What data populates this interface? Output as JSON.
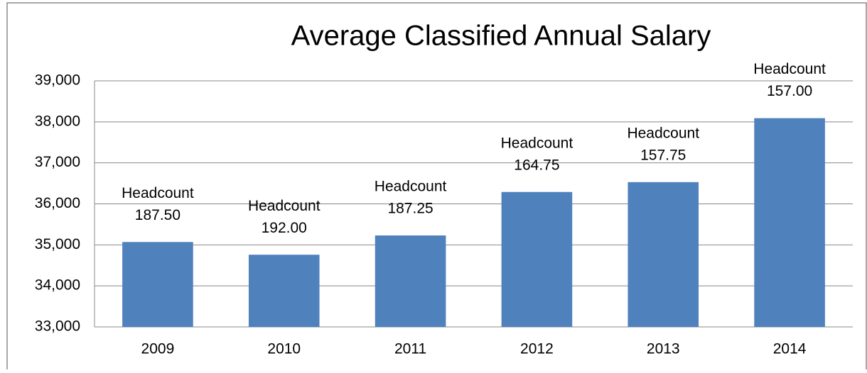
{
  "chart_data": {
    "type": "bar",
    "title": "Average Classified Annual Salary",
    "categories": [
      "2009",
      "2010",
      "2011",
      "2012",
      "2013",
      "2014"
    ],
    "values": [
      35070,
      34760,
      35230,
      36290,
      36530,
      38090
    ],
    "color": "#4f81bd",
    "annotations": [
      [
        "Headcount",
        "187.50"
      ],
      [
        "Headcount",
        "192.00"
      ],
      [
        "Headcount",
        "187.25"
      ],
      [
        "Headcount",
        "164.75"
      ],
      [
        "Headcount",
        "157.75"
      ],
      [
        "Headcount",
        "157.00"
      ]
    ],
    "ylim": [
      33000,
      39000
    ],
    "yticks": [
      {
        "value": 33000,
        "label": "33,000"
      },
      {
        "value": 34000,
        "label": "34,000"
      },
      {
        "value": 35000,
        "label": "35,000"
      },
      {
        "value": 36000,
        "label": "36,000"
      },
      {
        "value": 37000,
        "label": "37,000"
      },
      {
        "value": 38000,
        "label": "38,000"
      },
      {
        "value": 39000,
        "label": "39,000"
      }
    ],
    "grid": true
  }
}
